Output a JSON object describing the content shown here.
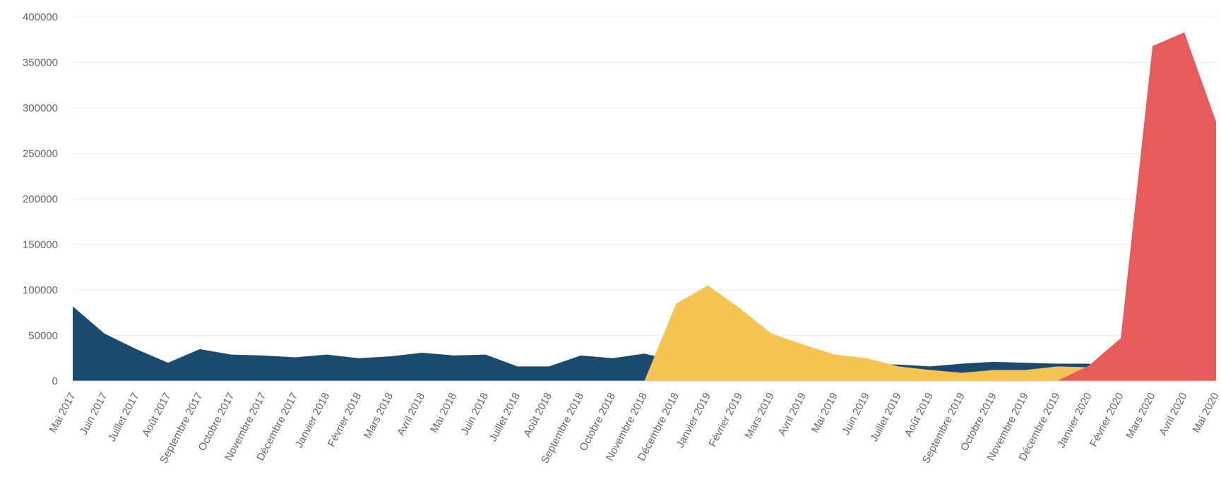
{
  "chart_data": {
    "type": "area",
    "title": "",
    "xlabel": "",
    "ylabel": "",
    "ylim": [
      0,
      400000
    ],
    "yticks": [
      0,
      50000,
      100000,
      150000,
      200000,
      250000,
      300000,
      350000,
      400000
    ],
    "ytick_labels": [
      "0",
      "50000",
      "100000",
      "150000",
      "200000",
      "250000",
      "300000",
      "350000",
      "400000"
    ],
    "grid": true,
    "legend": "none",
    "categories": [
      "Mai 2017",
      "Juin 2017",
      "Juillet 2017",
      "Août 2017",
      "Septembre 2017",
      "Octobre 2017",
      "Novembre 2017",
      "Décembre 2017",
      "Janvier 2018",
      "Février 2018",
      "Mars 2018",
      "Avril 2018",
      "Mai 2018",
      "Juin 2018",
      "Juillet 2018",
      "Août 2018",
      "Septembre 2018",
      "Octobre 2018",
      "Novembre 2018",
      "Décembre 2018",
      "Janvier 2019",
      "Février 2019",
      "Mars 2019",
      "Avril 2019",
      "Mai 2019",
      "Juin 2019",
      "Juillet 2019",
      "Août 2019",
      "Septembre 2019",
      "Octobre 2019",
      "Novembre 2019",
      "Décembre 2019",
      "Janvier 2020",
      "Février 2020",
      "Mars 2020",
      "Avril 2020",
      "Mai 2020"
    ],
    "series": [
      {
        "color": "#1a4a6e",
        "values": [
          82000,
          52000,
          35000,
          20000,
          35000,
          29000,
          28000,
          26000,
          29000,
          25000,
          27000,
          31000,
          28000,
          29000,
          16000,
          16000,
          28000,
          25000,
          30000,
          22000,
          27000,
          23000,
          27000,
          29000,
          27000,
          19000,
          18000,
          16000,
          19000,
          21000,
          20000,
          19000,
          19000,
          0,
          0,
          0,
          0
        ]
      },
      {
        "color": "#f5c451",
        "values": [
          0,
          0,
          0,
          0,
          0,
          0,
          0,
          0,
          0,
          0,
          0,
          0,
          0,
          0,
          0,
          0,
          0,
          0,
          0,
          85000,
          105000,
          80000,
          52000,
          40000,
          29000,
          25000,
          16000,
          12000,
          9000,
          12000,
          12000,
          16000,
          15000,
          0,
          0,
          0,
          0
        ]
      },
      {
        "color": "#e85b5b",
        "values": [
          0,
          0,
          0,
          0,
          0,
          0,
          0,
          0,
          0,
          0,
          0,
          0,
          0,
          0,
          0,
          0,
          0,
          0,
          0,
          0,
          0,
          0,
          0,
          0,
          0,
          0,
          0,
          0,
          0,
          0,
          0,
          0,
          17000,
          47000,
          368000,
          383000,
          285000
        ]
      }
    ]
  }
}
